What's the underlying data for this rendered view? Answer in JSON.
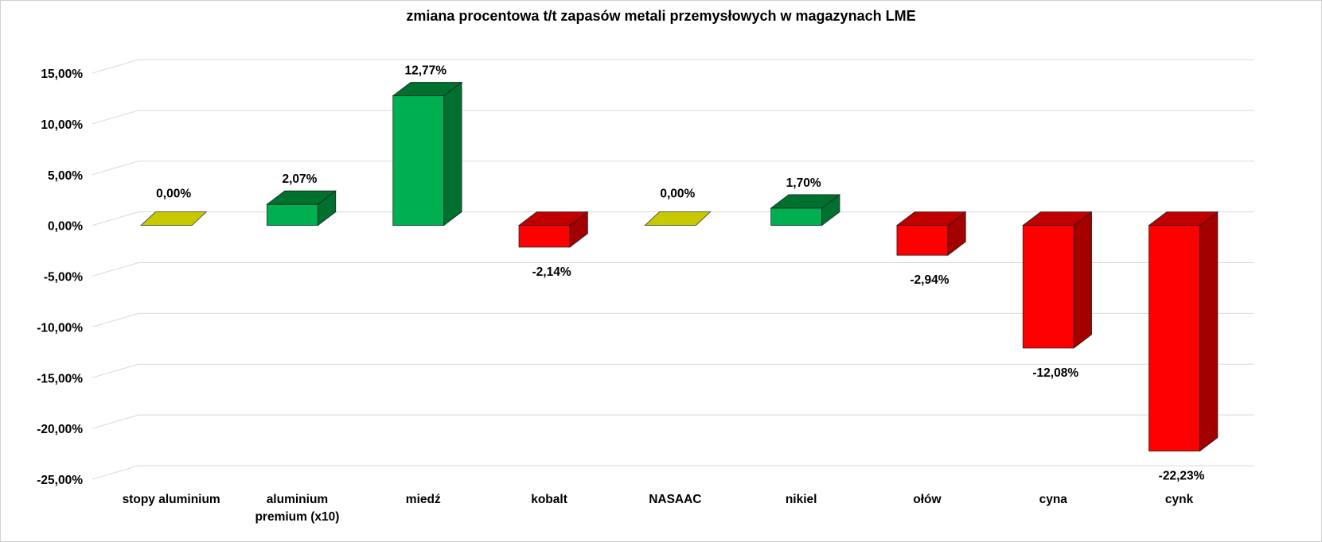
{
  "chart_data": {
    "type": "bar",
    "title": "zmiana procentowa t/t zapasów metali przemysłowych w magazynach LME",
    "categories": [
      "stopy aluminium",
      "aluminium premium (x10)",
      "miedź",
      "kobalt",
      "NASAAC",
      "nikiel",
      "ołów",
      "cyna",
      "cynk"
    ],
    "category_lines": [
      [
        "stopy aluminium"
      ],
      [
        "aluminium",
        "premium (x10)"
      ],
      [
        "miedź"
      ],
      [
        "kobalt"
      ],
      [
        "NASAAC"
      ],
      [
        "nikiel"
      ],
      [
        "ołów"
      ],
      [
        "cyna"
      ],
      [
        "cynk"
      ]
    ],
    "values": [
      0.0,
      2.07,
      12.77,
      -2.14,
      0.0,
      1.7,
      -2.94,
      -12.08,
      -22.23
    ],
    "data_labels": [
      "0,00%",
      "2,07%",
      "12,77%",
      "-2,14%",
      "0,00%",
      "1,70%",
      "-2,94%",
      "-12,08%",
      "-22,23%"
    ],
    "xlabel": "",
    "ylabel": "",
    "ylim": [
      -25,
      15
    ],
    "yticks": [
      15,
      10,
      5,
      0,
      -5,
      -10,
      -15,
      -20,
      -25
    ],
    "ytick_labels": [
      "15,00%",
      "10,00%",
      "5,00%",
      "0,00%",
      "-5,00%",
      "-10,00%",
      "-15,00%",
      "-20,00%",
      "-25,00%"
    ],
    "grid": true,
    "three_d": true,
    "colors": {
      "positive_front": "#00b050",
      "positive_side": "#00702f",
      "negative_front": "#ff0000",
      "negative_side": "#a50000",
      "negative_top": "#c00000",
      "zero": "#c8c800",
      "grid": "#d9d9d9"
    }
  }
}
